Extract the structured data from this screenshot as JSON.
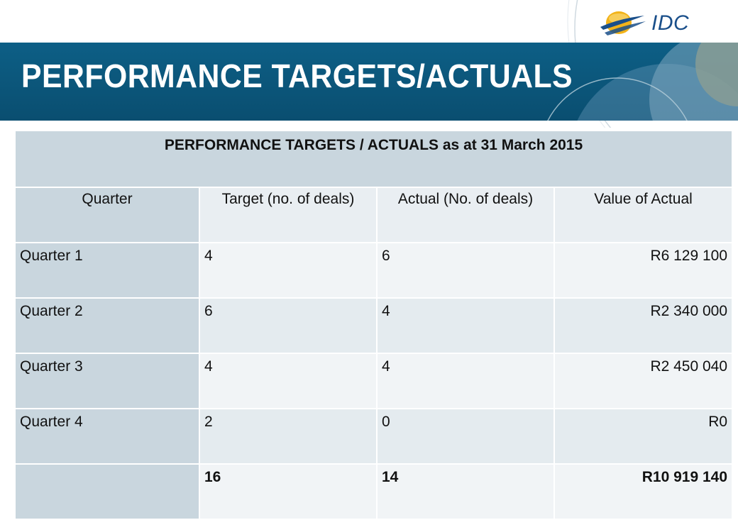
{
  "page": {
    "title": "PERFORMANCE TARGETS/ACTUALS",
    "logo_text": "IDC"
  },
  "table": {
    "caption": "PERFORMANCE TARGETS / ACTUALS as at 31 March 2015",
    "headers": [
      "Quarter",
      "Target (no. of deals)",
      "Actual (No. of deals)",
      "Value of Actual"
    ],
    "rows": [
      {
        "quarter": "Quarter 1",
        "target": "4",
        "actual": "6",
        "value": "R6 129 100"
      },
      {
        "quarter": "Quarter 2",
        "target": "6",
        "actual": "4",
        "value": "R2 340 000"
      },
      {
        "quarter": "Quarter 3",
        "target": "4",
        "actual": "4",
        "value": "R2 450 040"
      },
      {
        "quarter": "Quarter 4",
        "target": "2",
        "actual": "0",
        "value": "R0"
      }
    ],
    "total": {
      "quarter": "",
      "target": "16",
      "actual": "14",
      "value": "R10 919 140"
    }
  },
  "colors": {
    "header_band": "#0a4e70",
    "table_dark": "#c9d6de",
    "table_light": "#f1f4f6",
    "logo_blue": "#1a4f8a",
    "logo_gold": "#f2b31a"
  }
}
